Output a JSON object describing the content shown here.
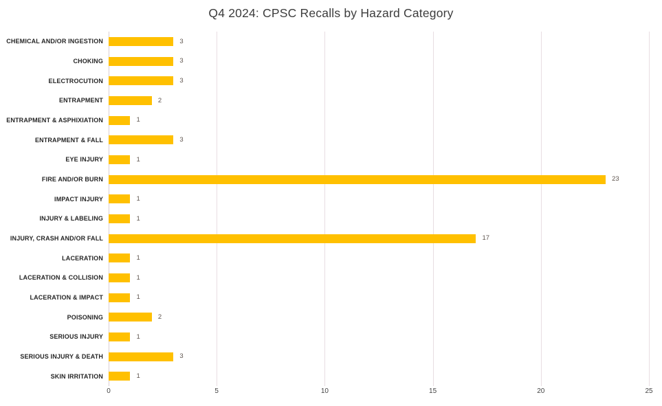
{
  "chart_data": {
    "type": "bar",
    "orientation": "horizontal",
    "title": "Q4 2024: CPSC Recalls by Hazard Category",
    "categories": [
      "CHEMICAL AND/OR INGESTION",
      "CHOKING",
      "ELECTROCUTION",
      "ENTRAPMENT",
      "ENTRAPMENT & ASPHIXIATION",
      "ENTRAPMENT & FALL",
      "EYE INJURY",
      "FIRE AND/OR BURN",
      "IMPACT INJURY",
      "INJURY & LABELING",
      "INJURY, CRASH AND/OR FALL",
      "LACERATION",
      "LACERATION & COLLISION",
      "LACERATION & IMPACT",
      "POISONING",
      "SERIOUS INJURY",
      "SERIOUS INJURY & DEATH",
      "SKIN IRRITATION"
    ],
    "values": [
      3,
      3,
      3,
      2,
      1,
      3,
      1,
      23,
      1,
      1,
      17,
      1,
      1,
      1,
      2,
      1,
      3,
      1
    ],
    "xlabel": "",
    "ylabel": "",
    "xlim": [
      0,
      25
    ],
    "x_ticks": [
      0,
      5,
      10,
      15,
      20,
      25
    ],
    "grid": true,
    "legend": false,
    "data_labels": true,
    "colors": {
      "bar": "#FFC000",
      "gridline": "#e8dde2",
      "axis_line": "#d9cdd3",
      "category_label": "#252525",
      "data_label": "#5e544e",
      "tick_label": "#444444",
      "title": "#3d3d3d",
      "background": "#ffffff"
    }
  }
}
